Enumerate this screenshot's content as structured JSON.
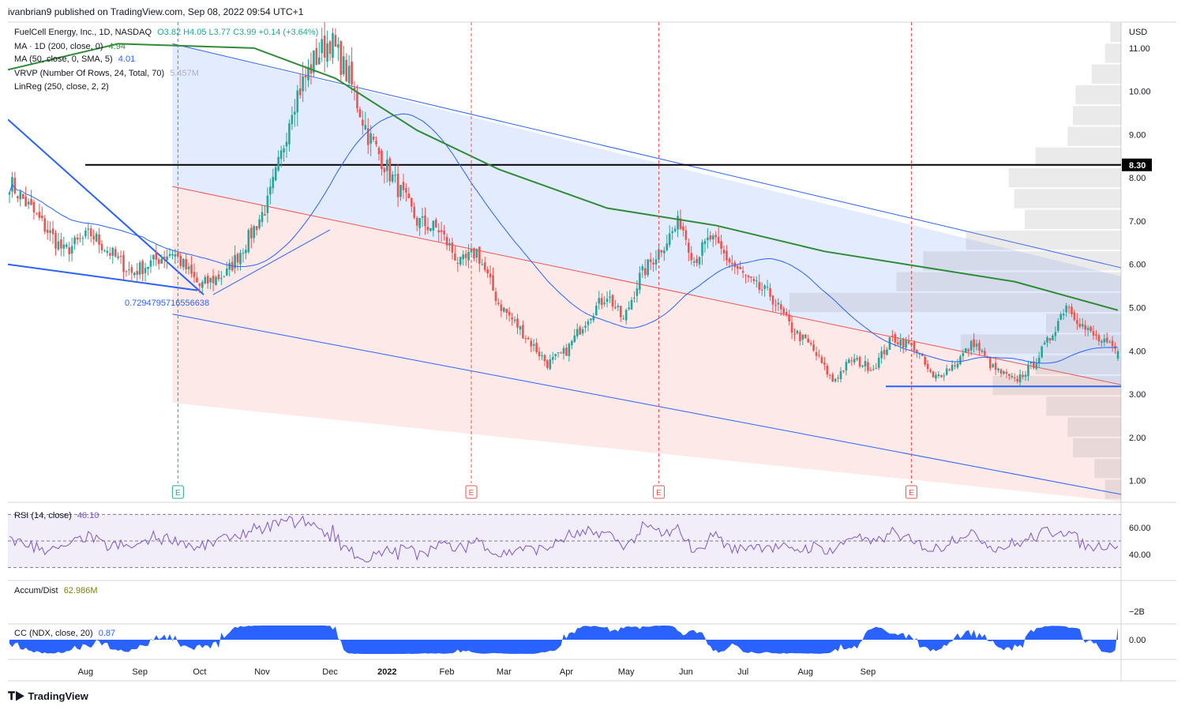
{
  "publisher": "ivanbrian9 published on TradingView.com, Sep 08, 2022 09:54 UTC+1",
  "brand": "TradingView",
  "colors": {
    "up": "#26a69a",
    "down": "#ef5350",
    "ma200": "#2e8b37",
    "ma50": "#2962ff",
    "channel_blue": "#2962ff",
    "channel_red": "#ef5350"
  },
  "legend": {
    "symbol_line": "FuelCell Energy, Inc., 1D, NASDAQ",
    "ohlc": "O3.82  H4.05  L3.77  C3.99  +0.14 (+3.64%)",
    "ma200_label": "MA · 1D (200, close, 0)",
    "ma200_value": "4.94",
    "ma50_label": "MA (50, close, 0, SMA, 5)",
    "ma50_value": "4.01",
    "vrvp_label": "VRVP (Number Of Rows, 24, Total, 70)",
    "vrvp_value": "5.457M",
    "linreg_label": "LinReg (250, close, 2, 2)",
    "rsi_label": "RSI (14, close)",
    "rsi_value": "46.10",
    "ad_label": "Accum/Dist",
    "ad_value": "62.986M",
    "cc_label": "CC (NDX, close, 20)",
    "cc_value": "0.87"
  },
  "annotation": "0.7294795716556638",
  "hline_label": "8.30",
  "earnings_marker": "E",
  "chart_data": {
    "type": "candlestick",
    "symbol": "FuelCell Energy, Inc. (NASDAQ)",
    "timeframe": "1D",
    "currency": "USD",
    "ylim": [
      0.5,
      11.6
    ],
    "yticks": [
      "11.00",
      "10.00",
      "9.00",
      "8.00",
      "7.00",
      "6.00",
      "5.00",
      "4.00",
      "3.00",
      "2.00",
      "1.00"
    ],
    "xticks": [
      "Aug",
      "Sep",
      "Oct",
      "Nov",
      "Dec",
      "2022",
      "Feb",
      "Mar",
      "Apr",
      "May",
      "Jun",
      "Jul",
      "Aug",
      "Sep"
    ],
    "last_bar": {
      "open": 3.82,
      "high": 4.05,
      "low": 3.77,
      "close": 3.99,
      "change": 0.14,
      "change_pct": 3.64
    },
    "ma200_last": 4.94,
    "ma50_last": 4.01,
    "horizontal_levels": [
      8.3,
      3.18
    ],
    "close_anchors": [
      [
        0,
        7.9
      ],
      [
        10,
        7.1
      ],
      [
        20,
        6.3
      ],
      [
        30,
        6.7
      ],
      [
        45,
        5.8
      ],
      [
        60,
        6.3
      ],
      [
        70,
        5.5
      ],
      [
        80,
        5.8
      ],
      [
        88,
        6.6
      ],
      [
        95,
        7.4
      ],
      [
        100,
        8.5
      ],
      [
        104,
        9.7
      ],
      [
        112,
        10.7
      ],
      [
        118,
        11.2
      ],
      [
        125,
        10.3
      ],
      [
        132,
        9.0
      ],
      [
        140,
        8.1
      ],
      [
        150,
        7.0
      ],
      [
        158,
        6.8
      ],
      [
        166,
        6.0
      ],
      [
        172,
        6.3
      ],
      [
        180,
        5.1
      ],
      [
        188,
        4.5
      ],
      [
        198,
        3.7
      ],
      [
        205,
        4.0
      ],
      [
        213,
        4.8
      ],
      [
        220,
        5.3
      ],
      [
        226,
        4.7
      ],
      [
        232,
        5.7
      ],
      [
        240,
        6.4
      ],
      [
        247,
        7.0
      ],
      [
        252,
        6.1
      ],
      [
        258,
        6.6
      ],
      [
        266,
        6.0
      ],
      [
        274,
        5.5
      ],
      [
        280,
        5.3
      ],
      [
        288,
        4.5
      ],
      [
        295,
        4.1
      ],
      [
        303,
        3.3
      ],
      [
        310,
        3.8
      ],
      [
        318,
        3.6
      ],
      [
        325,
        4.3
      ],
      [
        333,
        4.1
      ],
      [
        340,
        3.35
      ],
      [
        348,
        3.7
      ],
      [
        355,
        4.2
      ],
      [
        362,
        3.6
      ],
      [
        370,
        3.3
      ],
      [
        377,
        3.7
      ],
      [
        383,
        4.3
      ],
      [
        389,
        5.1
      ],
      [
        396,
        4.5
      ],
      [
        402,
        4.2
      ],
      [
        408,
        3.99
      ]
    ],
    "earnings_bars": [
      62,
      170,
      239,
      332
    ],
    "rsi": {
      "value": 46.1,
      "levels": [
        70,
        50,
        30
      ],
      "yticks": [
        "60.00",
        "40.00"
      ]
    },
    "accum_dist": {
      "value_label": "62.986M",
      "ytick": "−2B"
    },
    "cc_ndx": {
      "value": 0.87,
      "ytick": "0.00"
    }
  }
}
